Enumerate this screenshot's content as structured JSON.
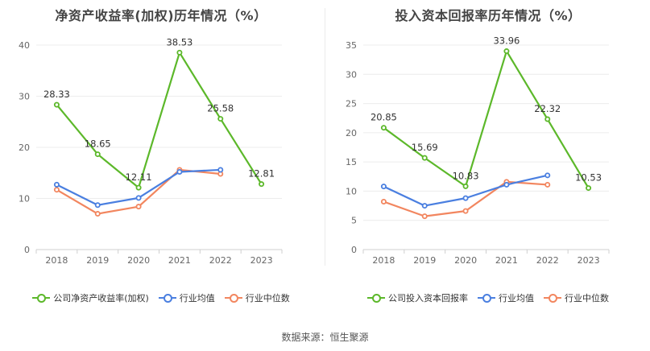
{
  "chart_data": [
    {
      "type": "line",
      "title": "净资产收益率(加权)历年情况（%）",
      "categories": [
        "2018",
        "2019",
        "2020",
        "2021",
        "2022",
        "2023"
      ],
      "ylim": [
        0,
        40
      ],
      "yticks": [
        0,
        10,
        20,
        30,
        40
      ],
      "grid": true,
      "legend_position": "bottom",
      "series": [
        {
          "name": "公司净资产收益率(加权)",
          "color": "#5cb82a",
          "values": [
            28.33,
            18.65,
            12.11,
            38.53,
            25.58,
            12.81
          ],
          "labels": [
            "28.33",
            "18.65",
            "12.11",
            "38.53",
            "25.58",
            "12.81"
          ]
        },
        {
          "name": "行业均值",
          "color": "#4a7fe0",
          "values": [
            12.7,
            8.7,
            10.1,
            15.2,
            15.6,
            null
          ]
        },
        {
          "name": "行业中位数",
          "color": "#f2865f",
          "values": [
            11.7,
            7.0,
            8.4,
            15.6,
            14.8,
            null
          ]
        }
      ]
    },
    {
      "type": "line",
      "title": "投入资本回报率历年情况（%）",
      "categories": [
        "2018",
        "2019",
        "2020",
        "2021",
        "2022",
        "2023"
      ],
      "ylim": [
        0,
        35
      ],
      "yticks": [
        0,
        5,
        10,
        15,
        20,
        25,
        30,
        35
      ],
      "grid": true,
      "legend_position": "bottom",
      "series": [
        {
          "name": "公司投入资本回报率",
          "color": "#5cb82a",
          "values": [
            20.85,
            15.69,
            10.83,
            33.96,
            22.32,
            10.53
          ],
          "labels": [
            "20.85",
            "15.69",
            "10.83",
            "33.96",
            "22.32",
            "10.53"
          ]
        },
        {
          "name": "行业均值",
          "color": "#4a7fe0",
          "values": [
            10.8,
            7.5,
            8.8,
            11.1,
            12.7,
            null
          ]
        },
        {
          "name": "行业中位数",
          "color": "#f2865f",
          "values": [
            8.2,
            5.7,
            6.6,
            11.6,
            11.1,
            null
          ]
        }
      ]
    }
  ],
  "source_text": "数据来源：恒生聚源"
}
